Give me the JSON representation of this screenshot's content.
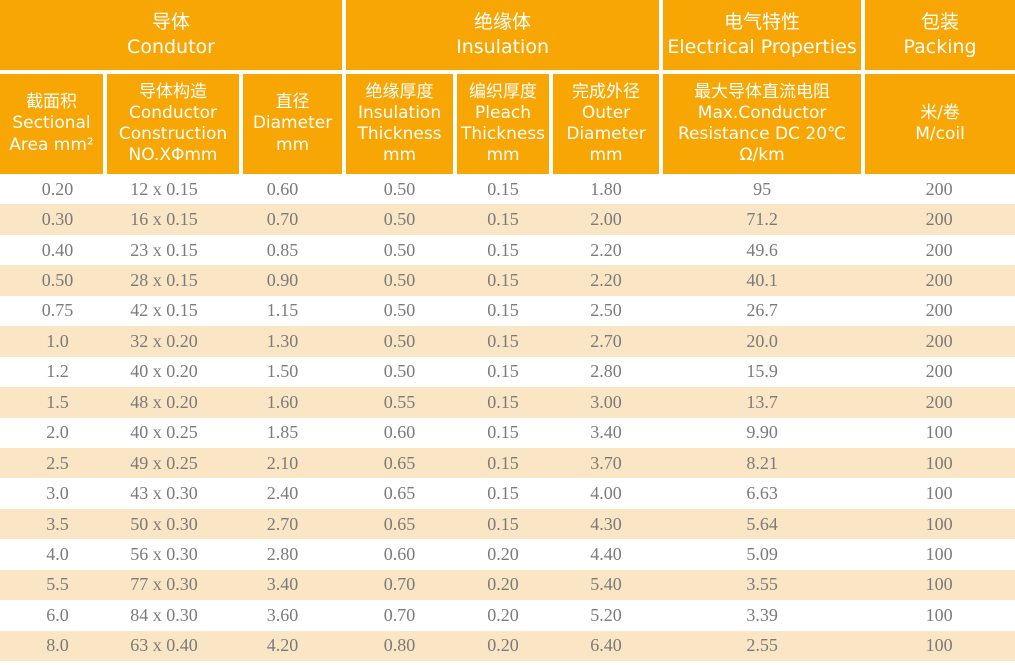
{
  "colors": {
    "header_background": "#f7a604",
    "row_stripe": "#fae5c4",
    "data_text": "#7b7b7b",
    "header_text": "#ffffff"
  },
  "chart_data": {
    "type": "table",
    "column_groups": [
      {
        "label": "导体\nCondutor",
        "span": 3
      },
      {
        "label": "绝缘体\nInsulation",
        "span": 3
      },
      {
        "label": "电气特性\nElectrical Properties",
        "span": 1
      },
      {
        "label": "包装\nPacking",
        "span": 1
      }
    ],
    "columns": [
      {
        "id": "sectional-area",
        "label": "截面积\nSectional\nArea mm²"
      },
      {
        "id": "conductor-construction",
        "label": "导体构造\nConductor\nConstruction\nNO.XΦmm"
      },
      {
        "id": "diameter",
        "label": "直径\nDiameter\nmm"
      },
      {
        "id": "insulation-thickness",
        "label": "绝缘厚度\nInsulation\nThickness\nmm"
      },
      {
        "id": "pleach-thickness",
        "label": "编织厚度\nPleach\nThickness\nmm"
      },
      {
        "id": "outer-diameter",
        "label": "完成外径\nOuter\nDiameter\nmm"
      },
      {
        "id": "max-resistance",
        "label": "最大导体直流电阻\nMax.Conductor\nResistance DC 20℃\nΩ/km"
      },
      {
        "id": "m-per-coil",
        "label": "米/卷\nM/coil"
      }
    ],
    "rows": [
      [
        "0.20",
        "12 x 0.15",
        "0.60",
        "0.50",
        "0.15",
        "1.80",
        "95",
        "200"
      ],
      [
        "0.30",
        "16 x 0.15",
        "0.70",
        "0.50",
        "0.15",
        "2.00",
        "71.2",
        "200"
      ],
      [
        "0.40",
        "23 x 0.15",
        "0.85",
        "0.50",
        "0.15",
        "2.20",
        "49.6",
        "200"
      ],
      [
        "0.50",
        "28 x 0.15",
        "0.90",
        "0.50",
        "0.15",
        "2.20",
        "40.1",
        "200"
      ],
      [
        "0.75",
        "42 x 0.15",
        "1.15",
        "0.50",
        "0.15",
        "2.50",
        "26.7",
        "200"
      ],
      [
        "1.0",
        "32 x 0.20",
        "1.30",
        "0.50",
        "0.15",
        "2.70",
        "20.0",
        "200"
      ],
      [
        "1.2",
        "40 x 0.20",
        "1.50",
        "0.50",
        "0.15",
        "2.80",
        "15.9",
        "200"
      ],
      [
        "1.5",
        "48 x 0.20",
        "1.60",
        "0.55",
        "0.15",
        "3.00",
        "13.7",
        "200"
      ],
      [
        "2.0",
        "40 x 0.25",
        "1.85",
        "0.60",
        "0.15",
        "3.40",
        "9.90",
        "100"
      ],
      [
        "2.5",
        "49 x 0.25",
        "2.10",
        "0.65",
        "0.15",
        "3.70",
        "8.21",
        "100"
      ],
      [
        "3.0",
        "43 x 0.30",
        "2.40",
        "0.65",
        "0.15",
        "4.00",
        "6.63",
        "100"
      ],
      [
        "3.5",
        "50 x 0.30",
        "2.70",
        "0.65",
        "0.15",
        "4.30",
        "5.64",
        "100"
      ],
      [
        "4.0",
        "56 x 0.30",
        "2.80",
        "0.60",
        "0.20",
        "4.40",
        "5.09",
        "100"
      ],
      [
        "5.5",
        "77 x 0.30",
        "3.40",
        "0.70",
        "0.20",
        "5.40",
        "3.55",
        "100"
      ],
      [
        "6.0",
        "84 x 0.30",
        "3.60",
        "0.70",
        "0.20",
        "5.20",
        "3.39",
        "100"
      ],
      [
        "8.0",
        "63 x 0.40",
        "4.20",
        "0.80",
        "0.20",
        "6.40",
        "2.55",
        "100"
      ]
    ]
  }
}
